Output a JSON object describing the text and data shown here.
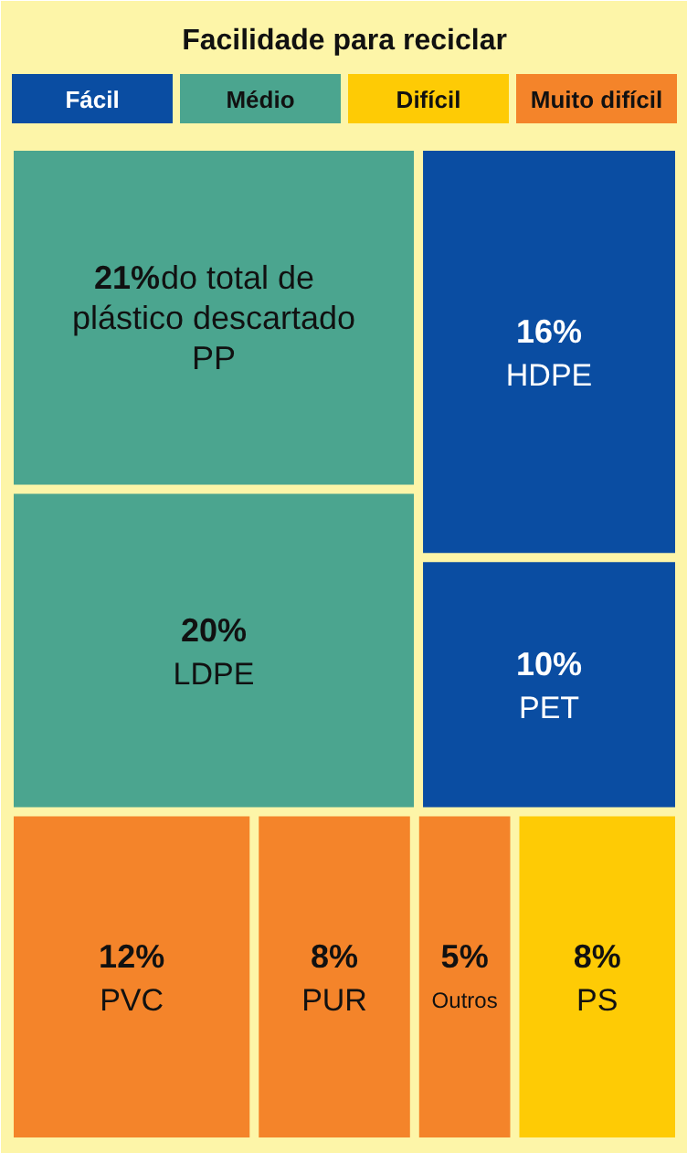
{
  "chart_data": {
    "type": "other",
    "title": "Facilidade para reciclar",
    "legend": "top",
    "categories": [
      "PP",
      "LDPE",
      "HDPE",
      "PET",
      "PVC",
      "PUR",
      "Outros",
      "PS"
    ],
    "series": [
      {
        "name": "Fácil",
        "color": "#0a4da2",
        "values": [
          null,
          null,
          16,
          10,
          null,
          null,
          null,
          null
        ],
        "value_labels": [
          null,
          null,
          "16%",
          "10%",
          null,
          null,
          null,
          null
        ]
      },
      {
        "name": "Médio",
        "color": "#4ba58f",
        "values": [
          21,
          20,
          null,
          null,
          null,
          null,
          null,
          null
        ],
        "value_labels": [
          "21%",
          "20%",
          null,
          null,
          null,
          null,
          null,
          null
        ]
      },
      {
        "name": "Difícil",
        "color": "#fecb05",
        "values": [
          null,
          null,
          null,
          null,
          null,
          null,
          null,
          8
        ],
        "value_labels": [
          null,
          null,
          null,
          null,
          null,
          null,
          null,
          "8%"
        ]
      },
      {
        "name": "Muito difícil",
        "color": "#f4842a",
        "values": [
          null,
          null,
          null,
          null,
          12,
          8,
          5,
          null
        ],
        "value_labels": [
          null,
          null,
          null,
          null,
          "12%",
          "8%",
          "5%",
          null
        ]
      }
    ],
    "annotations": [
      {
        "text": "do total de plástico descartado",
        "x": "PP"
      }
    ]
  }
}
